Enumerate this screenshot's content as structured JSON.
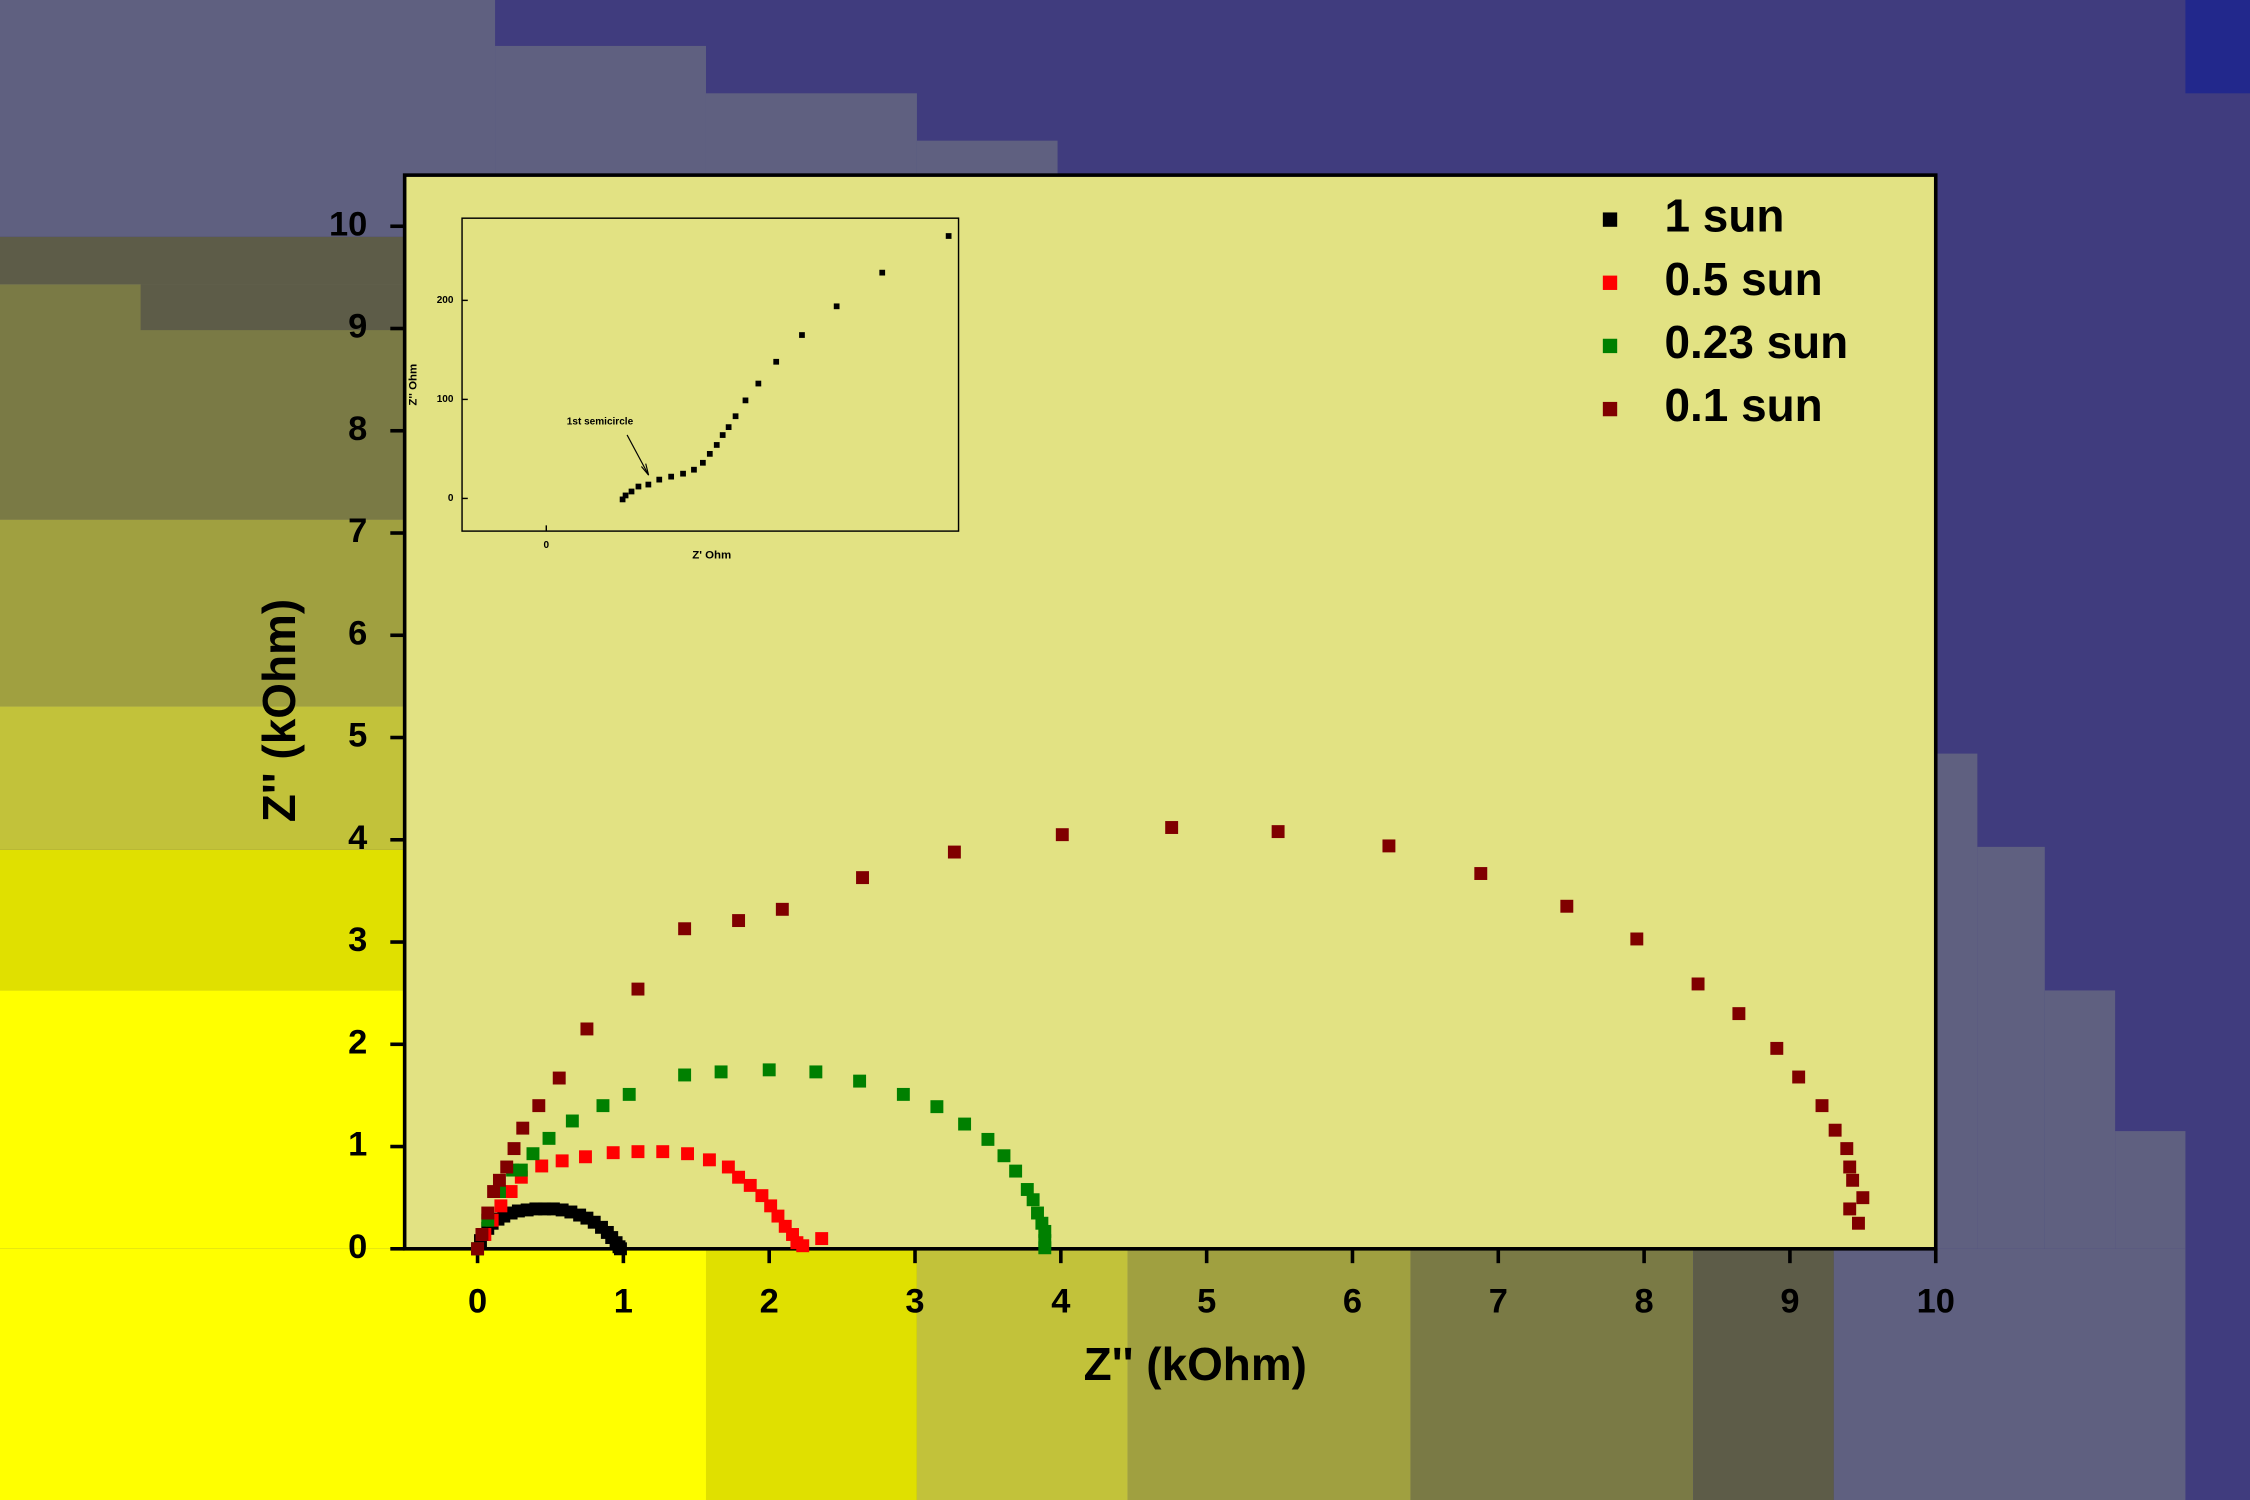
{
  "chart_data": [
    {
      "type": "scatter",
      "x_label": "Z'' (kOhm)",
      "y_label": "Z'' (kOhm)",
      "xlim": [
        -0.5,
        10
      ],
      "ylim": [
        0,
        10.5
      ],
      "xticks": [
        0,
        1,
        2,
        3,
        4,
        5,
        6,
        7,
        8,
        9,
        10
      ],
      "yticks": [
        0,
        1,
        2,
        3,
        4,
        5,
        6,
        7,
        8,
        9,
        10
      ],
      "legend": "upper right",
      "series": [
        {
          "name": "1 sun",
          "color": "#000000",
          "x": [
            0,
            0.02,
            0.04,
            0.07,
            0.1,
            0.14,
            0.18,
            0.23,
            0.28,
            0.34,
            0.4,
            0.46,
            0.52,
            0.58,
            0.64,
            0.7,
            0.75,
            0.8,
            0.85,
            0.89,
            0.92,
            0.95,
            0.97,
            0.98
          ],
          "values": [
            0,
            0.08,
            0.14,
            0.2,
            0.25,
            0.29,
            0.32,
            0.35,
            0.37,
            0.38,
            0.39,
            0.39,
            0.39,
            0.38,
            0.36,
            0.33,
            0.3,
            0.26,
            0.21,
            0.16,
            0.11,
            0.06,
            0.02,
            0
          ]
        },
        {
          "name": "0.5 sun",
          "color": "#ff0000",
          "x": [
            0,
            0.05,
            0.1,
            0.16,
            0.23,
            0.3,
            0.44,
            0.58,
            0.74,
            0.93,
            1.1,
            1.27,
            1.44,
            1.59,
            1.72,
            1.79,
            1.87,
            1.95,
            2.01,
            2.06,
            2.11,
            2.16,
            2.19,
            2.23,
            2.36
          ],
          "values": [
            0,
            0.14,
            0.28,
            0.42,
            0.56,
            0.7,
            0.81,
            0.86,
            0.9,
            0.94,
            0.95,
            0.95,
            0.93,
            0.87,
            0.8,
            0.7,
            0.62,
            0.52,
            0.42,
            0.32,
            0.22,
            0.14,
            0.06,
            0.03,
            0.1
          ]
        },
        {
          "name": "0.23 sun",
          "color": "#008000",
          "x": [
            0,
            0.07,
            0.15,
            0.24,
            0.3,
            0.38,
            0.49,
            0.65,
            0.86,
            1.04,
            1.42,
            1.67,
            2.0,
            2.32,
            2.62,
            2.92,
            3.15,
            3.34,
            3.5,
            3.61,
            3.69,
            3.77,
            3.81,
            3.84,
            3.87,
            3.89,
            3.89,
            3.89
          ],
          "values": [
            0,
            0.28,
            0.56,
            0.77,
            0.77,
            0.93,
            1.08,
            1.25,
            1.4,
            1.51,
            1.7,
            1.73,
            1.75,
            1.73,
            1.64,
            1.51,
            1.39,
            1.22,
            1.07,
            0.91,
            0.76,
            0.58,
            0.48,
            0.35,
            0.25,
            0.17,
            0.08,
            0.01
          ]
        },
        {
          "name": "0.1 sun",
          "color": "#800000",
          "x": [
            0,
            0.03,
            0.07,
            0.11,
            0.15,
            0.2,
            0.25,
            0.31,
            0.42,
            0.56,
            0.75,
            1.1,
            1.42,
            1.79,
            2.09,
            2.64,
            3.27,
            4.01,
            4.76,
            5.49,
            6.25,
            6.88,
            7.47,
            7.95,
            8.37,
            8.65,
            8.91,
            9.06,
            9.22,
            9.31,
            9.39,
            9.41,
            9.43,
            9.5,
            9.41,
            9.47
          ],
          "values": [
            0,
            0.14,
            0.35,
            0.56,
            0.67,
            0.8,
            0.98,
            1.18,
            1.4,
            1.67,
            2.15,
            2.54,
            3.13,
            3.21,
            3.32,
            3.63,
            3.88,
            4.05,
            4.12,
            4.08,
            3.94,
            3.67,
            3.35,
            3.03,
            2.59,
            2.3,
            1.96,
            1.68,
            1.4,
            1.16,
            0.98,
            0.8,
            0.67,
            0.5,
            0.39,
            0.25
          ]
        }
      ]
    },
    {
      "type": "scatter",
      "x_label": "Z' Ohm",
      "y_label": "Z'' Ohm",
      "annotation": "1st semicircle",
      "xlim": [
        -85,
        416
      ],
      "ylim": [
        -33,
        283
      ],
      "xticks": [
        0
      ],
      "yticks": [
        0,
        100,
        200
      ],
      "series": [
        {
          "color": "#000000",
          "x": [
            77,
            80,
            86,
            93,
            103,
            114,
            126,
            138,
            149,
            158,
            165,
            172,
            178,
            184,
            191,
            201,
            214,
            232,
            258,
            293,
            339,
            406
          ],
          "values": [
            -1,
            3,
            7,
            12,
            14,
            19,
            22,
            25,
            29,
            36,
            45,
            54,
            64,
            72,
            83,
            99,
            116,
            138,
            165,
            194,
            228,
            265
          ]
        }
      ]
    }
  ]
}
